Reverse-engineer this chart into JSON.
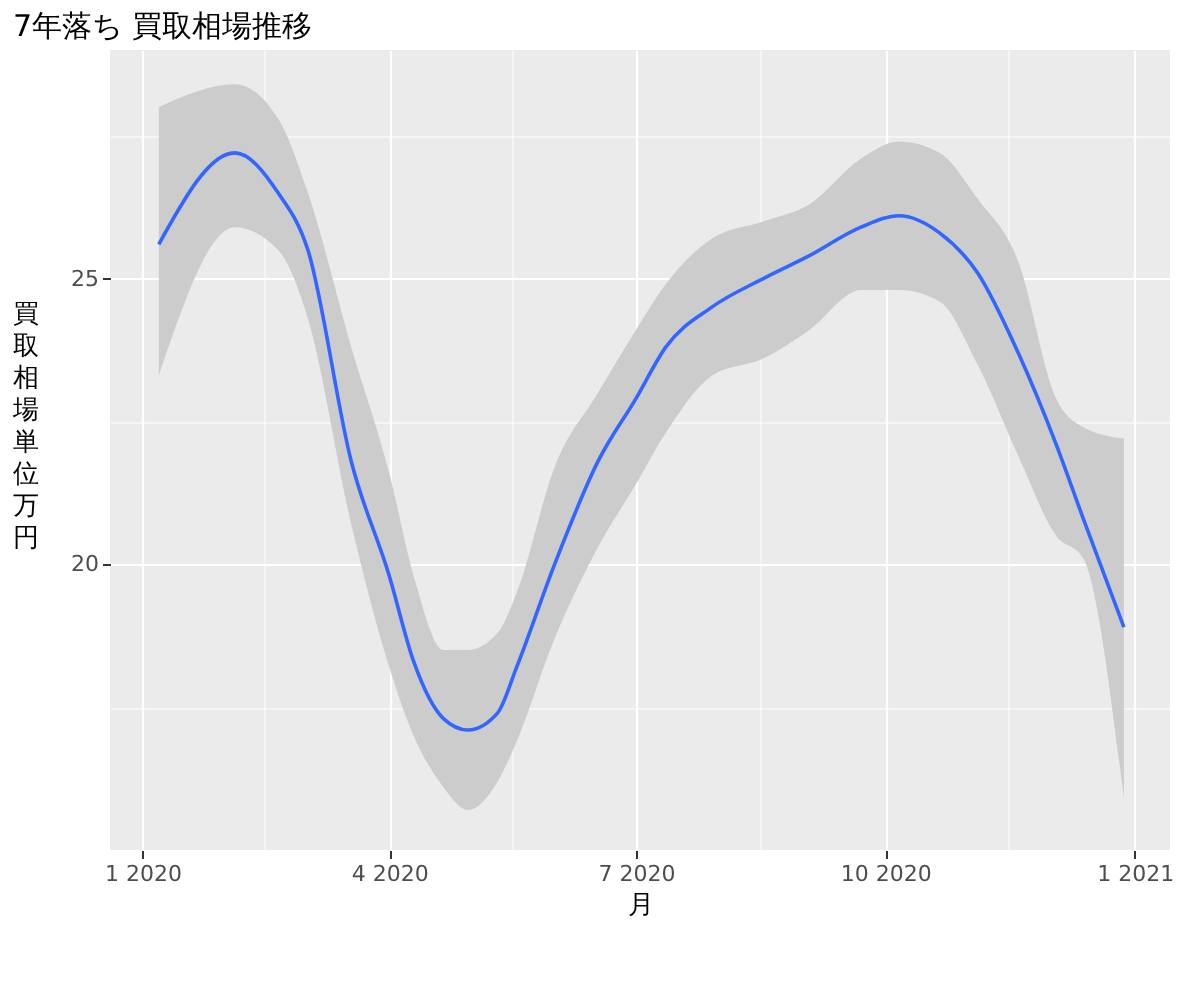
{
  "chart_data": {
    "type": "line",
    "title": "7年落ち 買取相場推移",
    "xlabel": "月",
    "ylabel": "買取相場単位万円",
    "x": [
      "2020-01-07",
      "2020-02-04",
      "2020-02-20",
      "2020-03-02",
      "2020-03-18",
      "2020-04-01",
      "2020-04-10",
      "2020-04-21",
      "2020-04-30",
      "2020-05-11",
      "2020-05-18",
      "2020-06-01",
      "2020-06-17",
      "2020-07-01",
      "2020-07-12",
      "2020-07-29",
      "2020-08-17",
      "2020-09-03",
      "2020-09-22",
      "2020-10-06",
      "2020-10-21",
      "2020-11-04",
      "2020-11-19",
      "2020-12-03",
      "2020-12-13",
      "2020-12-28"
    ],
    "series": [
      {
        "type": "line",
        "color": "#3366ff",
        "values": [
          25.6,
          27.2,
          26.5,
          25.5,
          21.8,
          19.8,
          18.3,
          17.3,
          17.1,
          17.4,
          18.2,
          20.0,
          21.8,
          22.9,
          23.8,
          24.5,
          25.0,
          25.4,
          25.9,
          26.1,
          25.8,
          25.1,
          23.7,
          22.1,
          20.8,
          18.9
        ],
        "lower": [
          23.3,
          25.9,
          25.5,
          24.3,
          20.7,
          18.2,
          17.0,
          16.1,
          15.7,
          16.2,
          16.9,
          18.7,
          20.3,
          21.4,
          22.3,
          23.3,
          23.6,
          24.1,
          24.8,
          24.8,
          24.6,
          23.5,
          21.9,
          20.5,
          20.1,
          15.9
        ],
        "upper": [
          28.0,
          28.4,
          27.8,
          26.5,
          23.8,
          21.6,
          19.8,
          18.5,
          18.5,
          18.8,
          19.5,
          21.7,
          23.0,
          24.1,
          24.9,
          25.7,
          26.0,
          26.3,
          27.1,
          27.4,
          27.2,
          26.4,
          25.3,
          22.9,
          22.4,
          22.2
        ]
      }
    ],
    "xlim": [
      "2019-12-20",
      "2021-01-14"
    ],
    "xticks": [
      {
        "value": "2020-01-01",
        "label": "1 2020"
      },
      {
        "value": "2020-02-15",
        "label": null
      },
      {
        "value": "2020-04-01",
        "label": "4 2020"
      },
      {
        "value": "2020-05-16",
        "label": null
      },
      {
        "value": "2020-07-01",
        "label": "7 2020"
      },
      {
        "value": "2020-08-16",
        "label": null
      },
      {
        "value": "2020-10-01",
        "label": "10 2020"
      },
      {
        "value": "2020-11-15",
        "label": null
      },
      {
        "value": "2021-01-01",
        "label": "1 2021"
      }
    ],
    "ylim": [
      15.0,
      29.0
    ],
    "yticks": [
      {
        "value": 17.5,
        "label": null
      },
      20,
      {
        "value": 22.5,
        "label": null
      },
      25,
      {
        "value": 27.5,
        "label": null
      }
    ],
    "grid": true,
    "marker": "none",
    "line_style": "solid"
  }
}
